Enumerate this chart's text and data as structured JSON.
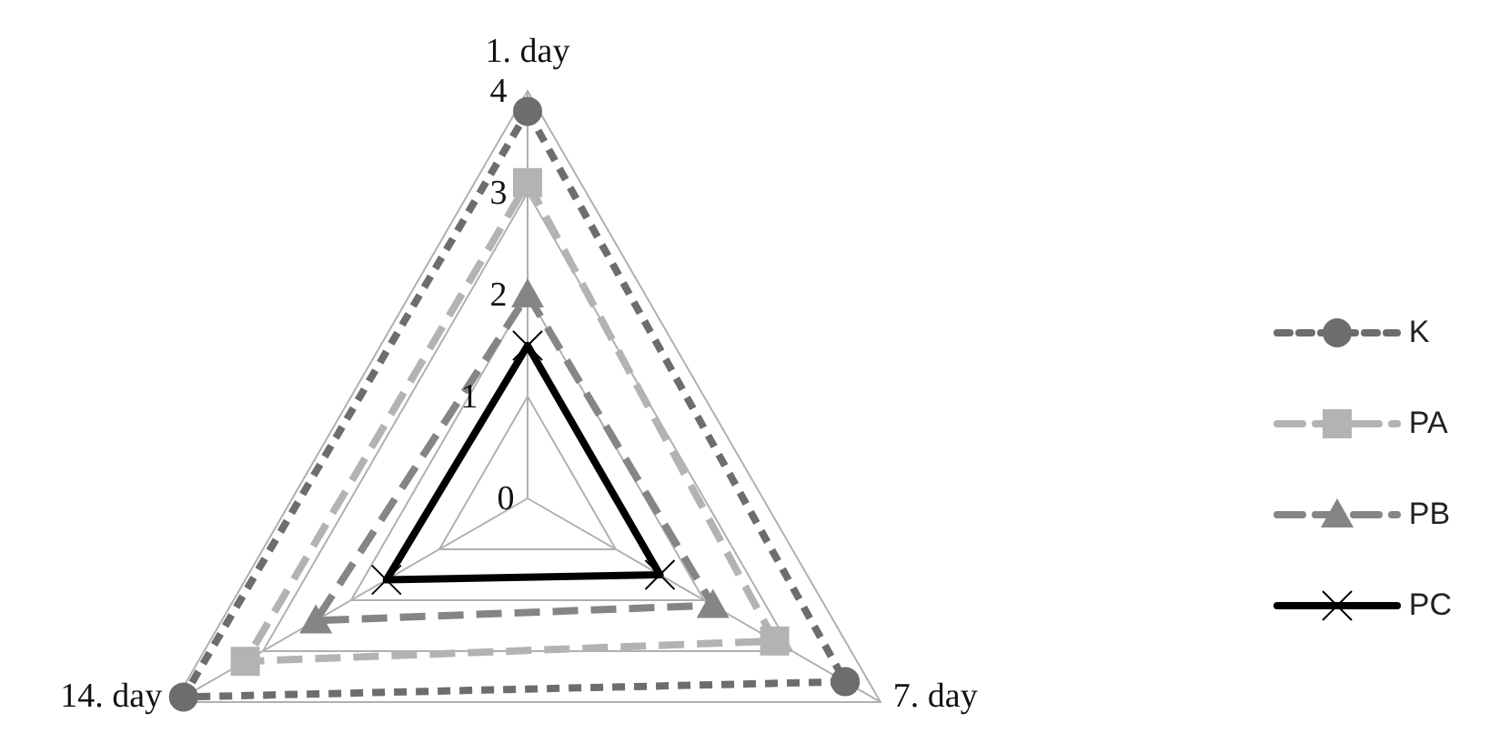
{
  "chart_data": {
    "type": "radar",
    "categories": [
      "1. day",
      "7. day",
      "14. day"
    ],
    "series": [
      {
        "name": "K",
        "color": "#6d6d6d",
        "values": [
          3.8,
          3.6,
          3.9
        ],
        "marker": "circle",
        "line_style": "dotted"
      },
      {
        "name": "PA",
        "color": "#b3b3b3",
        "values": [
          3.1,
          2.8,
          3.2
        ],
        "marker": "square",
        "line_style": "dashed"
      },
      {
        "name": "PB",
        "color": "#858585",
        "values": [
          2.0,
          2.1,
          2.4
        ],
        "marker": "triangle",
        "line_style": "dashed"
      },
      {
        "name": "PC",
        "color": "#000000",
        "values": [
          1.5,
          1.5,
          1.6
        ],
        "marker": "cross",
        "line_style": "solid"
      }
    ],
    "ylim": [
      0,
      4
    ],
    "yticks": [
      0,
      1,
      2,
      3,
      4
    ],
    "grid": true,
    "legend": "right"
  }
}
